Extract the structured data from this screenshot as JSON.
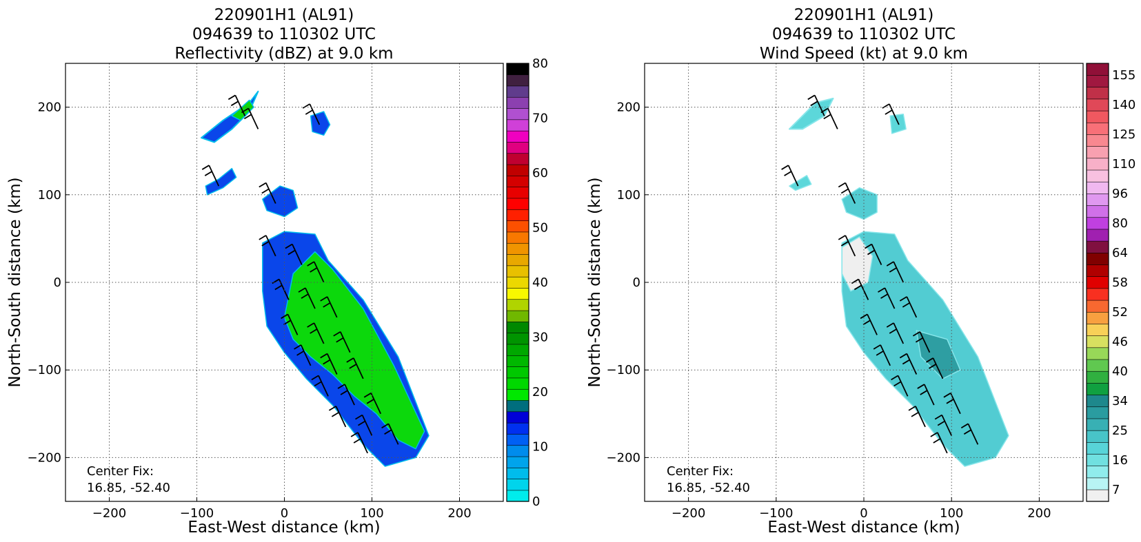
{
  "chart_data": [
    {
      "type": "heatmap",
      "title_lines": [
        "220901H1 (AL91)",
        "094639 to 110302 UTC",
        "Reflectivity (dBZ) at 9.0 km"
      ],
      "xlabel": "East-West distance (km)",
      "ylabel": "North-South distance (km)",
      "xlim": [
        -250,
        250
      ],
      "ylim": [
        -250,
        250
      ],
      "xticks": [
        -200,
        -100,
        0,
        100,
        200
      ],
      "yticks": [
        -200,
        -100,
        0,
        100,
        200
      ],
      "grid": true,
      "annotation_lines": [
        "Center Fix:",
        "16.85, -52.40"
      ],
      "colorbar": {
        "min": 0,
        "max": 80,
        "tick_labels": [
          "0",
          "10",
          "20",
          "30",
          "40",
          "50",
          "60",
          "70",
          "80"
        ],
        "tick_values": [
          0,
          10,
          20,
          30,
          40,
          50,
          60,
          70,
          80
        ],
        "colors": [
          "#00ecec",
          "#00d4ec",
          "#00bcec",
          "#00a4ec",
          "#008cec",
          "#0060f4",
          "#0030f0",
          "#0000d8",
          "#006e7e",
          "#00e800",
          "#00d800",
          "#00c800",
          "#00b800",
          "#00a800",
          "#009400",
          "#008800",
          "#70b800",
          "#b0d400",
          "#f8f800",
          "#ecd800",
          "#e8c000",
          "#e8a800",
          "#f09400",
          "#f87800",
          "#fc5000",
          "#ff2000",
          "#ff0000",
          "#e80000",
          "#d40000",
          "#c00000",
          "#c00030",
          "#e00080",
          "#f000c0",
          "#d040d8",
          "#b050d0",
          "#8c40b0",
          "#603c8c",
          "#402040",
          "#000000"
        ]
      },
      "echo_regions": [
        {
          "category": "weak (0-15 dBZ)",
          "polygon": [
            [
              -95,
              165
            ],
            [
              -70,
              185
            ],
            [
              -40,
              205
            ],
            [
              -30,
              218
            ],
            [
              -40,
              195
            ],
            [
              -60,
              175
            ],
            [
              -80,
              160
            ]
          ]
        },
        {
          "category": "moderate (15-25 dBZ)",
          "polygon": [
            [
              -60,
              190
            ],
            [
              -40,
              208
            ],
            [
              -35,
              200
            ],
            [
              -50,
              185
            ]
          ]
        },
        {
          "category": "weak (0-15 dBZ)",
          "polygon": [
            [
              -90,
              110
            ],
            [
              -75,
              118
            ],
            [
              -60,
              130
            ],
            [
              -55,
              120
            ],
            [
              -70,
              108
            ],
            [
              -88,
              100
            ]
          ]
        },
        {
          "category": "weak (0-15 dBZ)",
          "polygon": [
            [
              30,
              190
            ],
            [
              45,
              195
            ],
            [
              52,
              180
            ],
            [
              45,
              168
            ],
            [
              32,
              172
            ]
          ]
        },
        {
          "category": "weak (0-15 dBZ)",
          "polygon": [
            [
              -25,
              95
            ],
            [
              -5,
              110
            ],
            [
              10,
              105
            ],
            [
              15,
              85
            ],
            [
              0,
              75
            ],
            [
              -20,
              82
            ]
          ]
        },
        {
          "category": "weak (0-15 dBZ)",
          "polygon": [
            [
              -25,
              45
            ],
            [
              0,
              58
            ],
            [
              35,
              55
            ],
            [
              50,
              25
            ],
            [
              90,
              -20
            ],
            [
              130,
              -85
            ],
            [
              165,
              -175
            ],
            [
              150,
              -200
            ],
            [
              115,
              -210
            ],
            [
              90,
              -185
            ],
            [
              55,
              -140
            ],
            [
              25,
              -110
            ],
            [
              0,
              -80
            ],
            [
              -20,
              -50
            ],
            [
              -25,
              -10
            ]
          ]
        },
        {
          "category": "moderate (15-25 dBZ)",
          "polygon": [
            [
              10,
              10
            ],
            [
              35,
              35
            ],
            [
              55,
              15
            ],
            [
              90,
              -30
            ],
            [
              125,
              -95
            ],
            [
              160,
              -170
            ],
            [
              150,
              -190
            ],
            [
              130,
              -180
            ],
            [
              105,
              -150
            ],
            [
              80,
              -130
            ],
            [
              55,
              -105
            ],
            [
              30,
              -85
            ],
            [
              10,
              -65
            ],
            [
              0,
              -40
            ]
          ]
        }
      ],
      "wind_barbs": "present (black wind barbs overlaid on echo region)"
    },
    {
      "type": "heatmap",
      "title_lines": [
        "220901H1 (AL91)",
        "094639 to 110302 UTC",
        "Wind Speed (kt) at 9.0 km"
      ],
      "xlabel": "East-West distance (km)",
      "ylabel": "North-South distance (km)",
      "xlim": [
        -250,
        250
      ],
      "ylim": [
        -250,
        250
      ],
      "xticks": [
        -200,
        -100,
        0,
        100,
        200
      ],
      "yticks": [
        -200,
        -100,
        0,
        100,
        200
      ],
      "grid": true,
      "annotation_lines": [
        "Center Fix:",
        "16.85, -52.40"
      ],
      "colorbar": {
        "min": 7,
        "max": 160,
        "tick_labels": [
          "7",
          "16",
          "25",
          "34",
          "40",
          "46",
          "52",
          "58",
          "64",
          "80",
          "96",
          "110",
          "125",
          "140",
          "155"
        ],
        "tick_values": [
          7,
          16,
          25,
          34,
          40,
          46,
          52,
          58,
          64,
          80,
          96,
          110,
          125,
          140,
          155
        ],
        "colors": [
          "#f0f0f0",
          "#b8f4f4",
          "#90ecec",
          "#70e0e0",
          "#58d4d8",
          "#48c4c8",
          "#38b0b4",
          "#2a9ca0",
          "#1e888c",
          "#10a040",
          "#30b040",
          "#60c850",
          "#98d858",
          "#d8e060",
          "#f8d058",
          "#f8a040",
          "#f86830",
          "#f83020",
          "#e00000",
          "#b00000",
          "#800000",
          "#801040",
          "#a020b0",
          "#c040e0",
          "#d070e8",
          "#e098f0",
          "#f0b8f0",
          "#f8c0e0",
          "#f8b0c8",
          "#f8a0b0",
          "#f88890",
          "#f87078",
          "#f05860",
          "#e04858",
          "#c03048",
          "#a01840",
          "#901038"
        ]
      },
      "speed_regions": [
        {
          "category": "light (7-16 kt)",
          "polygon": [
            [
              -85,
              175
            ],
            [
              -55,
              205
            ],
            [
              -35,
              210
            ],
            [
              -45,
              190
            ],
            [
              -70,
              175
            ]
          ]
        },
        {
          "category": "light (7-16 kt)",
          "polygon": [
            [
              -85,
              110
            ],
            [
              -65,
              122
            ],
            [
              -60,
              112
            ],
            [
              -78,
              105
            ]
          ]
        },
        {
          "category": "light (7-16 kt)",
          "polygon": [
            [
              30,
              190
            ],
            [
              45,
              192
            ],
            [
              48,
              175
            ],
            [
              32,
              170
            ]
          ]
        },
        {
          "category": "light (16-25 kt)",
          "polygon": [
            [
              -25,
              95
            ],
            [
              -5,
              108
            ],
            [
              15,
              100
            ],
            [
              15,
              80
            ],
            [
              0,
              72
            ],
            [
              -20,
              80
            ]
          ]
        },
        {
          "category": "light (16-25 kt)",
          "polygon": [
            [
              -25,
              45
            ],
            [
              0,
              58
            ],
            [
              35,
              55
            ],
            [
              50,
              25
            ],
            [
              90,
              -20
            ],
            [
              130,
              -85
            ],
            [
              165,
              -175
            ],
            [
              150,
              -200
            ],
            [
              115,
              -210
            ],
            [
              90,
              -185
            ],
            [
              55,
              -140
            ],
            [
              25,
              -110
            ],
            [
              0,
              -80
            ],
            [
              -20,
              -50
            ],
            [
              -25,
              -10
            ]
          ]
        },
        {
          "category": "calm (<7 kt)",
          "polygon": [
            [
              -25,
              40
            ],
            [
              -5,
              52
            ],
            [
              10,
              30
            ],
            [
              5,
              0
            ],
            [
              -15,
              -10
            ],
            [
              -25,
              10
            ]
          ]
        },
        {
          "category": "moderate (25-34 kt)",
          "polygon": [
            [
              60,
              -55
            ],
            [
              95,
              -65
            ],
            [
              110,
              -100
            ],
            [
              90,
              -110
            ],
            [
              65,
              -85
            ]
          ]
        }
      ],
      "wind_barbs": "present (black wind barbs overlaid on wind-speed field)"
    }
  ]
}
